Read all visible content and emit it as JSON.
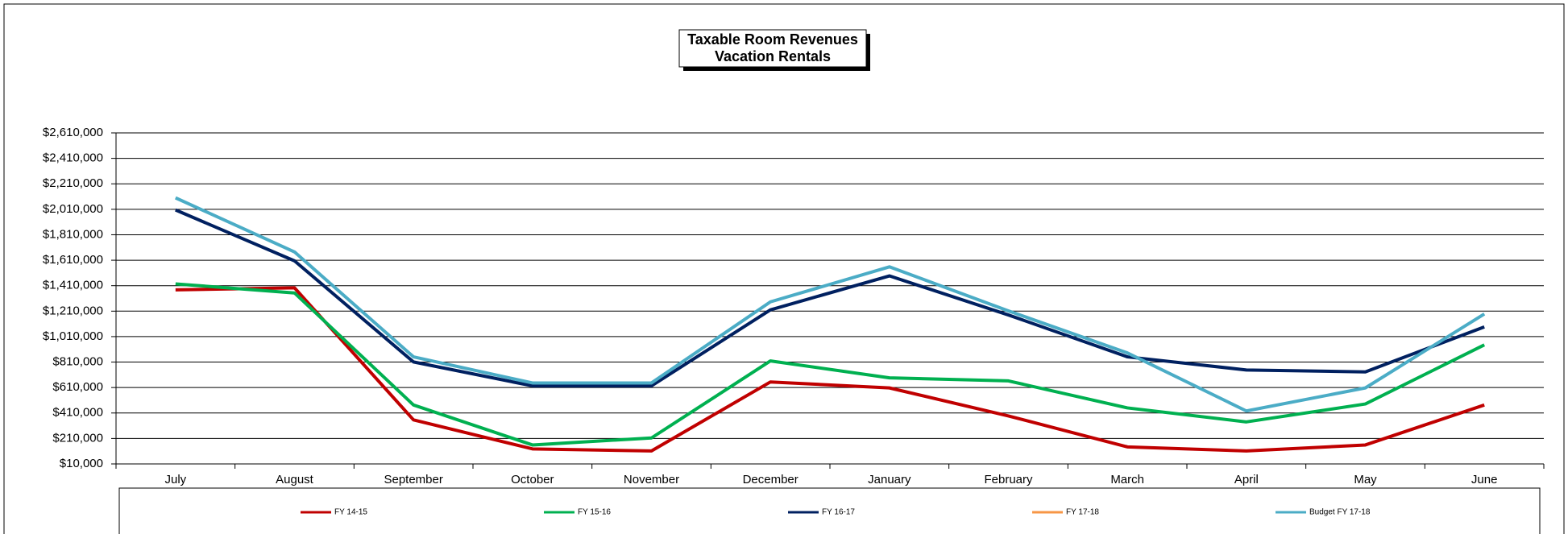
{
  "chart_data": {
    "type": "line",
    "title": "Taxable Room Revenues",
    "subtitle": "Vacation Rentals",
    "categories": [
      "July",
      "August",
      "September",
      "October",
      "November",
      "December",
      "January",
      "February",
      "March",
      "April",
      "May",
      "June"
    ],
    "ylim": [
      10000,
      2610000
    ],
    "yticks": [
      {
        "value": 10000,
        "label": "$10,000"
      },
      {
        "value": 210000,
        "label": "$210,000"
      },
      {
        "value": 410000,
        "label": "$410,000"
      },
      {
        "value": 610000,
        "label": "$610,000"
      },
      {
        "value": 810000,
        "label": "$810,000"
      },
      {
        "value": 1010000,
        "label": "$1,010,000"
      },
      {
        "value": 1210000,
        "label": "$1,210,000"
      },
      {
        "value": 1410000,
        "label": "$1,410,000"
      },
      {
        "value": 1610000,
        "label": "$1,610,000"
      },
      {
        "value": 1810000,
        "label": "$1,810,000"
      },
      {
        "value": 2010000,
        "label": "$2,010,000"
      },
      {
        "value": 2210000,
        "label": "$2,210,000"
      },
      {
        "value": 2410000,
        "label": "$2,410,000"
      },
      {
        "value": 2610000,
        "label": "$2,610,000"
      }
    ],
    "grid": true,
    "legend": "bottom",
    "series": [
      {
        "name": "FY 14-15",
        "color": "#c00000",
        "values": [
          1377000,
          1393000,
          356000,
          128000,
          112000,
          654000,
          607000,
          387000,
          144000,
          112000,
          159000,
          473000
        ]
      },
      {
        "name": "FY 15-16",
        "color": "#00b050",
        "values": [
          1424000,
          1353000,
          473000,
          159000,
          214000,
          819000,
          686000,
          662000,
          450000,
          340000,
          481000,
          945000
        ]
      },
      {
        "name": "FY 16-17",
        "color": "#002060",
        "values": [
          2005000,
          1605000,
          811000,
          623000,
          623000,
          1220000,
          1487000,
          1180000,
          851000,
          748000,
          733000,
          1086000
        ]
      },
      {
        "name": "FY 17-18",
        "color": "#f79646",
        "values": [
          null,
          null,
          null,
          null,
          null,
          null,
          null,
          null,
          null,
          null,
          null,
          null
        ]
      },
      {
        "name": "Budget FY 17-18",
        "color": "#4bacc6",
        "values": [
          2100000,
          1675000,
          851000,
          646000,
          646000,
          1283000,
          1558000,
          1212000,
          882000,
          426000,
          607000,
          1188000
        ]
      }
    ]
  }
}
